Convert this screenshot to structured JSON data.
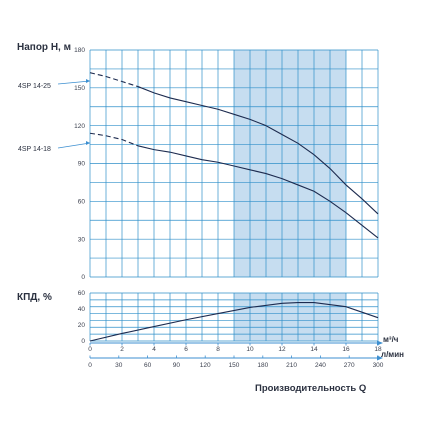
{
  "chart_data": [
    {
      "type": "line",
      "title": "Напор H, м",
      "xlabel": "",
      "ylabel": "",
      "xlim": [
        0,
        18
      ],
      "ylim": [
        0,
        180
      ],
      "y_ticks": [
        "0",
        "30",
        "60",
        "90",
        "120",
        "150",
        "180"
      ],
      "grid": true,
      "highlight_range_x": [
        9,
        16
      ],
      "series": [
        {
          "name": "4SP 14-25",
          "dashed_until_x": 3,
          "x": [
            0,
            1,
            2,
            3,
            4,
            5,
            6,
            7,
            8,
            9,
            10,
            11,
            12,
            13,
            14,
            15,
            16,
            17,
            18
          ],
          "values": [
            162,
            159,
            155,
            151,
            146,
            142,
            139,
            136,
            133,
            129,
            125,
            120,
            113,
            106,
            97,
            86,
            73,
            62,
            50
          ]
        },
        {
          "name": "4SP 14-18",
          "dashed_until_x": 3,
          "x": [
            0,
            1,
            2,
            3,
            4,
            5,
            6,
            7,
            8,
            9,
            10,
            11,
            12,
            13,
            14,
            15,
            16,
            17,
            18
          ],
          "values": [
            114,
            112,
            109,
            104,
            101,
            99,
            96,
            93,
            91,
            88,
            85,
            82,
            78,
            73,
            68,
            60,
            51,
            41,
            31
          ]
        }
      ]
    },
    {
      "type": "line",
      "title": "КПД, %",
      "xlabel": "Производительность Q",
      "ylabel": "",
      "xlim": [
        0,
        18
      ],
      "ylim": [
        0,
        70
      ],
      "y_ticks": [
        "0",
        "20",
        "40",
        "60"
      ],
      "x_ticks_primary": [
        "0",
        "2",
        "4",
        "6",
        "8",
        "10",
        "12",
        "14",
        "16",
        "18"
      ],
      "x_unit_primary": "м³/ч",
      "x_ticks_secondary": [
        "0",
        "30",
        "60",
        "90",
        "120",
        "150",
        "180",
        "210",
        "240",
        "270",
        "300"
      ],
      "x_unit_secondary": "л/мин",
      "grid": true,
      "highlight_range_x": [
        9,
        16
      ],
      "series": [
        {
          "name": "",
          "x": [
            0,
            2,
            4,
            6,
            8,
            10,
            12,
            13,
            14,
            16,
            18
          ],
          "values": [
            0,
            11,
            21,
            31,
            40,
            49,
            55,
            56,
            56,
            50,
            34
          ]
        }
      ]
    }
  ],
  "colors": {
    "grid": "#2f8fc9",
    "highlight": "#c6ddf0",
    "curve": "#1d2b4f",
    "axis": "#3c8fd0"
  }
}
